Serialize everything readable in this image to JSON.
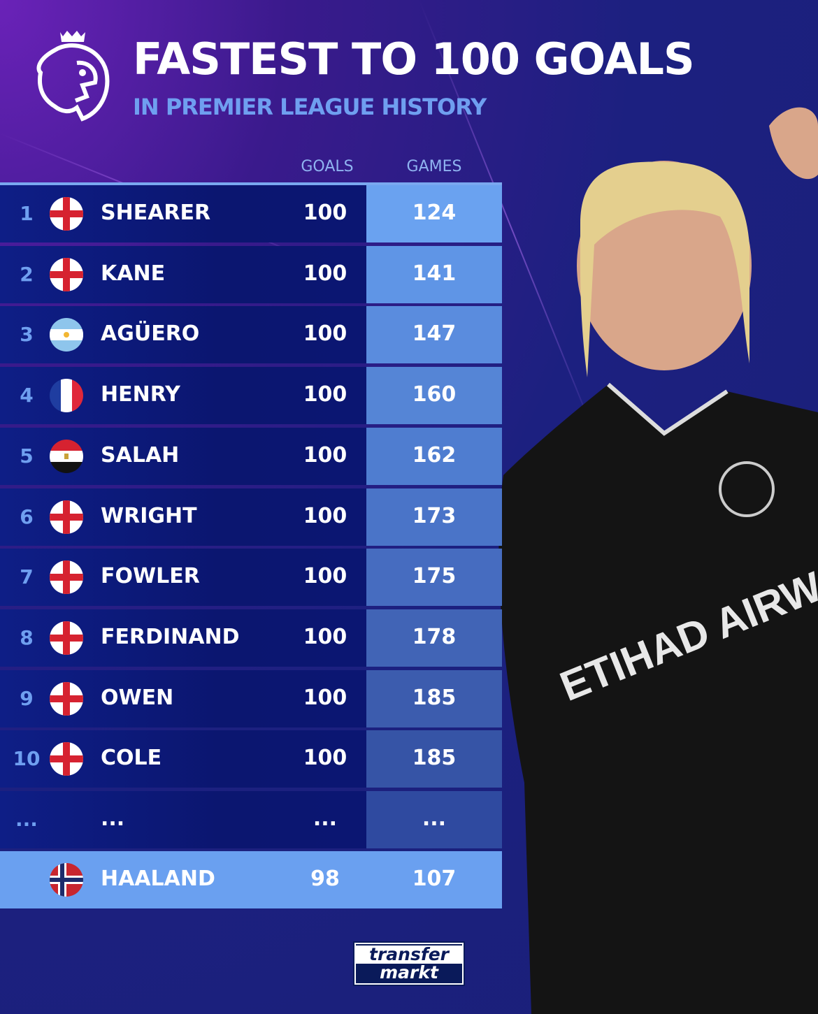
{
  "header": {
    "title": "FASTEST TO 100 GOALS",
    "subtitle": "IN PREMIER LEAGUE HISTORY",
    "logo": "premier-league-lion"
  },
  "columns": {
    "goals": "GOALS",
    "games": "GAMES"
  },
  "colors": {
    "accent": "#6f9ff0",
    "row_bg": "#0b1670",
    "highlight": "#6aa0f0"
  },
  "rows": [
    {
      "rank": "1",
      "flag": "england",
      "name": "SHEARER",
      "goals": "100",
      "games": "124"
    },
    {
      "rank": "2",
      "flag": "england",
      "name": "KANE",
      "goals": "100",
      "games": "141"
    },
    {
      "rank": "3",
      "flag": "argentina",
      "name": "AGÜERO",
      "goals": "100",
      "games": "147"
    },
    {
      "rank": "4",
      "flag": "france",
      "name": "HENRY",
      "goals": "100",
      "games": "160"
    },
    {
      "rank": "5",
      "flag": "egypt",
      "name": "SALAH",
      "goals": "100",
      "games": "162"
    },
    {
      "rank": "6",
      "flag": "england",
      "name": "WRIGHT",
      "goals": "100",
      "games": "173"
    },
    {
      "rank": "7",
      "flag": "england",
      "name": "FOWLER",
      "goals": "100",
      "games": "175"
    },
    {
      "rank": "8",
      "flag": "england",
      "name": "FERDINAND",
      "goals": "100",
      "games": "178"
    },
    {
      "rank": "9",
      "flag": "england",
      "name": "OWEN",
      "goals": "100",
      "games": "185"
    },
    {
      "rank": "10",
      "flag": "england",
      "name": "COLE",
      "goals": "100",
      "games": "185"
    },
    {
      "rank": "...",
      "flag": "",
      "name": "...",
      "goals": "...",
      "games": "..."
    }
  ],
  "highlight_row": {
    "rank": "",
    "flag": "norway",
    "name": "HAALAND",
    "goals": "98",
    "games": "107"
  },
  "player_jersey": {
    "sponsor": "ETIHAD AIRWAYS"
  },
  "footer": {
    "brand_line1": "transfer",
    "brand_line2": "markt"
  }
}
